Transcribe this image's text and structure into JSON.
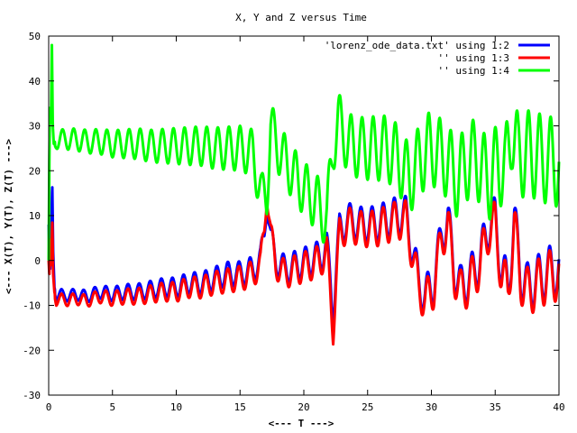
{
  "chart_data": {
    "type": "line",
    "title": "X, Y and Z versus Time",
    "xlabel": "<--- T --->",
    "ylabel": "<--- X(T), Y(T), Z(T) --->",
    "xlim": [
      0,
      40
    ],
    "ylim": [
      -30,
      50
    ],
    "xticks": [
      0,
      5,
      10,
      15,
      20,
      25,
      30,
      35,
      40
    ],
    "yticks": [
      -30,
      -20,
      -10,
      0,
      10,
      20,
      30,
      40,
      50
    ],
    "grid": false,
    "legend_position": "top-right",
    "series": [
      {
        "name": "'lorenz_ode_data.txt' using 1:2",
        "color": "#0000ff",
        "points": [
          [
            0,
            8
          ],
          [
            0.05,
            1
          ],
          [
            0.12,
            -2
          ],
          [
            0.2,
            6
          ],
          [
            0.28,
            17
          ],
          [
            0.35,
            2
          ],
          [
            0.45,
            -6
          ],
          [
            0.6,
            -8
          ],
          [
            1,
            -7.5
          ],
          [
            1.5,
            -8
          ],
          [
            2,
            -7.5
          ],
          [
            3,
            -8
          ],
          [
            4,
            -7
          ],
          [
            5,
            -7.5
          ],
          [
            6,
            -7
          ],
          [
            7,
            -7
          ],
          [
            8,
            -6.5
          ],
          [
            9,
            -6
          ],
          [
            10,
            -6
          ],
          [
            11,
            -5
          ],
          [
            12,
            -5
          ],
          [
            13,
            -4
          ],
          [
            14,
            -3
          ],
          [
            15,
            -3
          ],
          [
            16,
            -2
          ],
          [
            16.6,
            0
          ],
          [
            16.9,
            6
          ],
          [
            17.1,
            14
          ],
          [
            17.4,
            5
          ],
          [
            17.8,
            0
          ],
          [
            18.5,
            -2
          ],
          [
            19.5,
            -1
          ],
          [
            20.5,
            0
          ],
          [
            21.3,
            1
          ],
          [
            21.8,
            3
          ],
          [
            22.1,
            -5
          ],
          [
            22.3,
            -12
          ],
          [
            22.5,
            -4
          ],
          [
            22.8,
            7
          ],
          [
            23.5,
            9
          ],
          [
            24.5,
            8
          ],
          [
            25.5,
            8
          ],
          [
            26.5,
            9
          ],
          [
            27.3,
            10
          ],
          [
            28,
            10
          ],
          [
            28.5,
            3
          ],
          [
            29,
            -5
          ],
          [
            29.5,
            -8
          ],
          [
            30.2,
            -5
          ],
          [
            30.8,
            6
          ],
          [
            31.3,
            9
          ],
          [
            31.8,
            -2
          ],
          [
            32.3,
            -6
          ],
          [
            33,
            -4
          ],
          [
            33.8,
            0
          ],
          [
            34.5,
            8
          ],
          [
            35,
            9
          ],
          [
            35.5,
            -2
          ],
          [
            36,
            -6
          ],
          [
            36.5,
            9
          ],
          [
            37,
            -3
          ],
          [
            37.5,
            -6
          ],
          [
            38.5,
            -4
          ],
          [
            39.5,
            -2
          ],
          [
            40,
            -3
          ]
        ]
      },
      {
        "name": "'' using 1:3",
        "color": "#ff0000",
        "points": [
          [
            0,
            0
          ],
          [
            0.05,
            -3
          ],
          [
            0.12,
            5
          ],
          [
            0.2,
            -1
          ],
          [
            0.28,
            9
          ],
          [
            0.35,
            -3
          ],
          [
            0.45,
            -7
          ],
          [
            0.6,
            -9
          ],
          [
            1,
            -8.5
          ],
          [
            1.5,
            -9
          ],
          [
            2,
            -8.5
          ],
          [
            3,
            -9
          ],
          [
            4,
            -8
          ],
          [
            5,
            -8.5
          ],
          [
            6,
            -8
          ],
          [
            7,
            -8
          ],
          [
            8,
            -7.5
          ],
          [
            9,
            -7
          ],
          [
            10,
            -7
          ],
          [
            11,
            -6
          ],
          [
            12,
            -6
          ],
          [
            13,
            -5
          ],
          [
            14,
            -4.5
          ],
          [
            15,
            -4
          ],
          [
            16,
            -3
          ],
          [
            16.6,
            -1
          ],
          [
            16.9,
            7
          ],
          [
            17.1,
            16
          ],
          [
            17.4,
            6
          ],
          [
            17.8,
            -1
          ],
          [
            18.5,
            -3
          ],
          [
            19.5,
            -2
          ],
          [
            20.5,
            -1
          ],
          [
            21.3,
            0
          ],
          [
            21.8,
            2
          ],
          [
            22.1,
            -8
          ],
          [
            22.3,
            -15
          ],
          [
            22.5,
            -6
          ],
          [
            22.8,
            6
          ],
          [
            23.5,
            8
          ],
          [
            24.5,
            7
          ],
          [
            25.5,
            7
          ],
          [
            26.5,
            8
          ],
          [
            27.3,
            9
          ],
          [
            28,
            9
          ],
          [
            28.5,
            2
          ],
          [
            29,
            -6
          ],
          [
            29.5,
            -9
          ],
          [
            30.2,
            -6
          ],
          [
            30.8,
            5
          ],
          [
            31.3,
            8
          ],
          [
            31.8,
            -3
          ],
          [
            32.3,
            -7
          ],
          [
            33,
            -5
          ],
          [
            33.8,
            -1
          ],
          [
            34.5,
            7
          ],
          [
            35,
            8
          ],
          [
            35.5,
            -3
          ],
          [
            36,
            -7
          ],
          [
            36.5,
            8
          ],
          [
            37,
            -4
          ],
          [
            37.5,
            -7
          ],
          [
            38.5,
            -5
          ],
          [
            39.5,
            -3
          ],
          [
            40,
            -4
          ]
        ]
      },
      {
        "name": "'' using 1:4",
        "color": "#00ff00",
        "points": [
          [
            0,
            0
          ],
          [
            0.05,
            22
          ],
          [
            0.1,
            34
          ],
          [
            0.18,
            30
          ],
          [
            0.25,
            48
          ],
          [
            0.32,
            30
          ],
          [
            0.4,
            26
          ],
          [
            0.6,
            27
          ],
          [
            1,
            27
          ],
          [
            2,
            27
          ],
          [
            3,
            26.5
          ],
          [
            4,
            26.5
          ],
          [
            5,
            26
          ],
          [
            6,
            26
          ],
          [
            7,
            26
          ],
          [
            8,
            25.5
          ],
          [
            9,
            25.5
          ],
          [
            10,
            25.5
          ],
          [
            11,
            25.5
          ],
          [
            12,
            25.5
          ],
          [
            13,
            25
          ],
          [
            14,
            25
          ],
          [
            15,
            25
          ],
          [
            16,
            24
          ],
          [
            16.7,
            14
          ],
          [
            17.1,
            15
          ],
          [
            17.4,
            30
          ],
          [
            18,
            25
          ],
          [
            19,
            20
          ],
          [
            20,
            16
          ],
          [
            21,
            13
          ],
          [
            21.8,
            9
          ],
          [
            22.3,
            26
          ],
          [
            22.7,
            31
          ],
          [
            23.5,
            26
          ],
          [
            24.5,
            25
          ],
          [
            25.5,
            25
          ],
          [
            26.5,
            25
          ],
          [
            27.3,
            23
          ],
          [
            28.3,
            18
          ],
          [
            29,
            22
          ],
          [
            29.8,
            25
          ],
          [
            30.5,
            24
          ],
          [
            31.3,
            22
          ],
          [
            32,
            18
          ],
          [
            32.8,
            22
          ],
          [
            33.5,
            23
          ],
          [
            34,
            20
          ],
          [
            34.6,
            18
          ],
          [
            35.2,
            22
          ],
          [
            35.8,
            20
          ],
          [
            36.3,
            30
          ],
          [
            36.8,
            23
          ],
          [
            37.5,
            24
          ],
          [
            38.5,
            23
          ],
          [
            39.5,
            22
          ],
          [
            40,
            22
          ]
        ]
      }
    ]
  }
}
